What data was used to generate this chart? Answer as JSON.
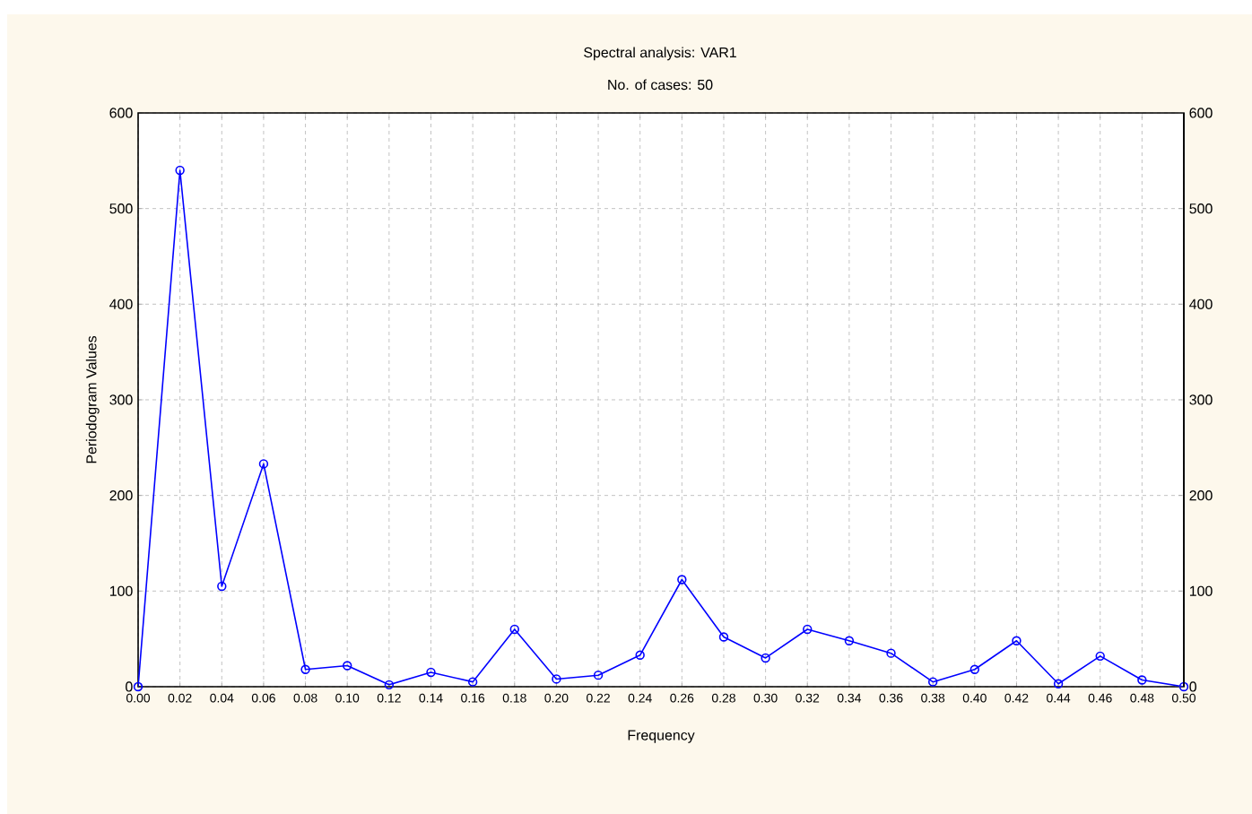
{
  "chart_data": {
    "type": "line",
    "title": "Spectral analysis: VAR1",
    "subtitle": "No. of cases: 50",
    "xlabel": "Frequency",
    "ylabel": "Periodogram Values",
    "x": [
      0,
      0.02,
      0.04,
      0.06,
      0.08,
      0.1,
      0.12,
      0.14,
      0.16,
      0.18,
      0.2,
      0.22,
      0.24,
      0.26,
      0.28,
      0.3,
      0.32,
      0.34,
      0.36,
      0.38,
      0.4,
      0.42,
      0.44,
      0.46,
      0.48,
      0.5
    ],
    "series": [
      {
        "color": "#0000ff",
        "values": [
          0,
          540,
          105,
          233,
          18,
          22,
          2,
          15,
          5,
          60,
          8,
          12,
          33,
          112,
          52,
          30,
          60,
          48,
          35,
          5,
          18,
          48,
          3,
          32,
          7,
          0
        ]
      }
    ],
    "xlim": [
      0,
      0.5
    ],
    "xticks": [
      {
        "value": 0,
        "label": "0.00"
      },
      {
        "value": 0.02,
        "label": "0.02"
      },
      {
        "value": 0.04,
        "label": "0.04"
      },
      {
        "value": 0.06,
        "label": "0.06"
      },
      {
        "value": 0.08,
        "label": "0.08"
      },
      {
        "value": 0.1,
        "label": "0.10"
      },
      {
        "value": 0.12,
        "label": "0.12"
      },
      {
        "value": 0.14,
        "label": "0.14"
      },
      {
        "value": 0.16,
        "label": "0.16"
      },
      {
        "value": 0.18,
        "label": "0.18"
      },
      {
        "value": 0.2,
        "label": "0.20"
      },
      {
        "value": 0.22,
        "label": "0.22"
      },
      {
        "value": 0.24,
        "label": "0.24"
      },
      {
        "value": 0.26,
        "label": "0.26"
      },
      {
        "value": 0.28,
        "label": "0.28"
      },
      {
        "value": 0.3,
        "label": "0.30"
      },
      {
        "value": 0.32,
        "label": "0.32"
      },
      {
        "value": 0.34,
        "label": "0.34"
      },
      {
        "value": 0.36,
        "label": "0.36"
      },
      {
        "value": 0.38,
        "label": "0.38"
      },
      {
        "value": 0.4,
        "label": "0.40"
      },
      {
        "value": 0.42,
        "label": "0.42"
      },
      {
        "value": 0.44,
        "label": "0.44"
      },
      {
        "value": 0.46,
        "label": "0.46"
      },
      {
        "value": 0.48,
        "label": "0.48"
      },
      {
        "value": 0.5,
        "label": "0.50"
      }
    ],
    "ylim": [
      0,
      600
    ],
    "yticks": [
      0,
      100,
      200,
      300,
      400,
      500,
      600
    ],
    "y2lim": [
      0,
      600
    ],
    "y2ticks": [
      0,
      100,
      200,
      300,
      400,
      500,
      600
    ],
    "grid": true,
    "marker": "circle",
    "line_style": "solid"
  }
}
